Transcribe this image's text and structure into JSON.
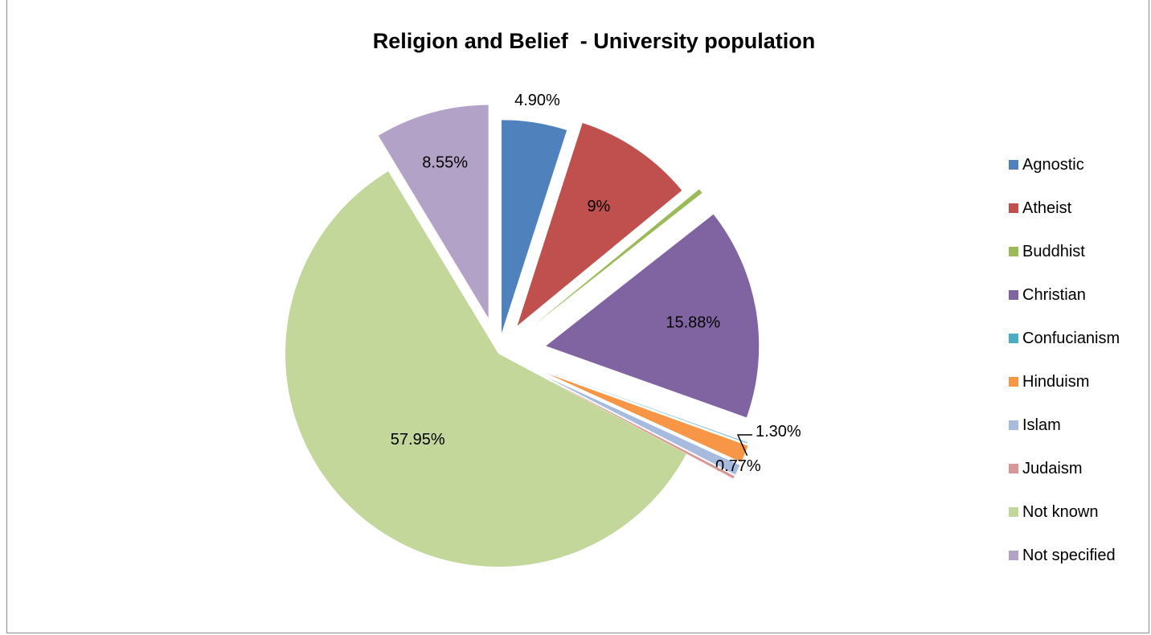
{
  "chart_data": {
    "type": "pie",
    "title": "Religion and Belief  - University population",
    "legend_position": "right",
    "categories": [
      "Agnostic",
      "Atheist",
      "Buddhist",
      "Christian",
      "Confucianism",
      "Hinduism",
      "Islam",
      "Judaism",
      "Not known",
      "Not specified"
    ],
    "values": [
      4.9,
      9,
      0.35,
      15.88,
      0.05,
      1.3,
      0.77,
      0.2,
      57.95,
      8.55
    ],
    "data_labels": [
      "4.90%",
      "9%",
      "",
      "15.88%",
      "",
      "1.30%",
      "0.77%",
      "",
      "57.95%",
      "8.55%"
    ],
    "colors": [
      "#4f81bd",
      "#c0504d",
      "#9bbb59",
      "#8064a2",
      "#4bacc6",
      "#f79646",
      "#a6bbdd",
      "#d99694",
      "#c4d79b",
      "#b3a2c7"
    ]
  }
}
